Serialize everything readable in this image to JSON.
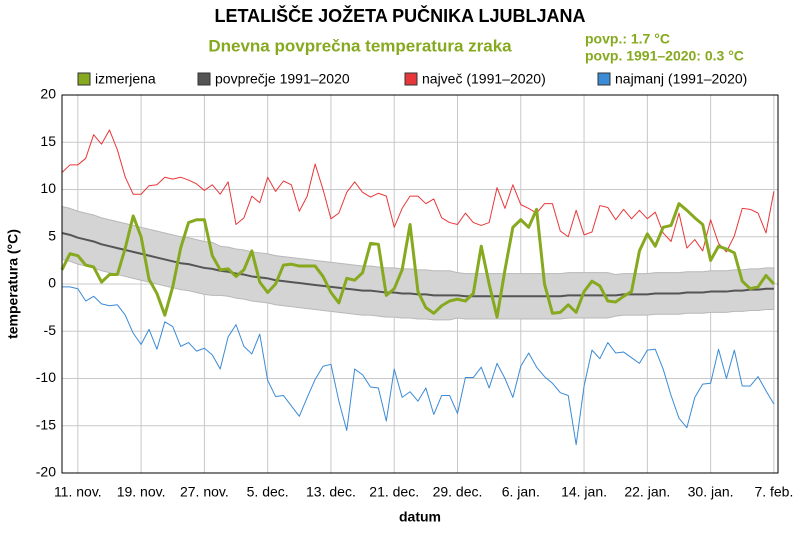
{
  "chart_data": {
    "type": "line",
    "title": "LETALIŠČE JOŽETA PUČNIKA LJUBLJANA",
    "subtitle": "Dnevna povprečna temperatura zraka",
    "annotations": [
      "povp.: 1.7 °C",
      "povp. 1991–2020: 0.3 °C"
    ],
    "annotation_color": "#86a91f",
    "xlabel": "datum",
    "ylabel": "temperatura (°C)",
    "grid": true,
    "legend": "top",
    "categories": [
      null,
      null,
      "11. nov.",
      null,
      null,
      null,
      null,
      null,
      null,
      null,
      "19. nov.",
      null,
      null,
      null,
      null,
      null,
      null,
      null,
      "27. nov.",
      null,
      null,
      null,
      null,
      null,
      null,
      null,
      "5. dec.",
      null,
      null,
      null,
      null,
      null,
      null,
      null,
      "13. dec.",
      null,
      null,
      null,
      null,
      null,
      null,
      null,
      "21. dec.",
      null,
      null,
      null,
      null,
      null,
      null,
      null,
      "29. dec.",
      null,
      null,
      null,
      null,
      null,
      null,
      null,
      "6. jan.",
      null,
      null,
      null,
      null,
      null,
      null,
      null,
      "14. jan.",
      null,
      null,
      null,
      null,
      null,
      null,
      null,
      "22. jan.",
      null,
      null,
      null,
      null,
      null,
      null,
      null,
      "30. jan.",
      null,
      null,
      null,
      null,
      null,
      null,
      null,
      "7. feb."
    ],
    "ylim": [
      -20,
      20
    ],
    "yticks": [
      -20,
      -15,
      -10,
      -5,
      0,
      5,
      10,
      15,
      20
    ],
    "band": {
      "color": "#d4d4d4",
      "upper": [
        8.2,
        8.0,
        7.7,
        7.5,
        7.3,
        7.0,
        6.8,
        6.6,
        6.4,
        6.2,
        6.0,
        5.8,
        5.6,
        5.4,
        5.2,
        5.0,
        4.9,
        4.7,
        4.5,
        4.4,
        4.0,
        3.9,
        3.7,
        3.6,
        3.4,
        3.3,
        3.2,
        3.0,
        2.9,
        2.8,
        2.7,
        2.6,
        2.5,
        2.4,
        2.3,
        2.2,
        2.1,
        2.0,
        1.9,
        1.9,
        1.8,
        1.7,
        1.7,
        1.6,
        1.6,
        1.5,
        1.5,
        1.4,
        1.4,
        1.4,
        1.2,
        1.1,
        1.1,
        1.1,
        1.1,
        1.1,
        1.1,
        1.1,
        1.1,
        1.1,
        1.1,
        1.1,
        1.1,
        1.1,
        1.2,
        1.2,
        1.2,
        1.2,
        1.2,
        1.2,
        1.0,
        1.1,
        1.1,
        1.1,
        1.1,
        1.2,
        1.2,
        1.2,
        1.2,
        1.3,
        1.3,
        1.3,
        1.4,
        1.4,
        1.4,
        1.5,
        1.5,
        1.6,
        1.6,
        1.7,
        1.7
      ],
      "lower": [
        2.6,
        2.4,
        2.1,
        1.9,
        1.7,
        1.4,
        1.2,
        1.0,
        0.8,
        0.6,
        0.4,
        0.2,
        0.0,
        -0.2,
        -0.4,
        -0.6,
        -0.7,
        -0.9,
        -1.1,
        -1.2,
        -1.2,
        -1.3,
        -1.5,
        -1.6,
        -1.8,
        -1.9,
        -2.0,
        -2.2,
        -2.3,
        -2.4,
        -2.5,
        -2.6,
        -2.7,
        -2.8,
        -2.9,
        -3.0,
        -3.1,
        -3.2,
        -3.3,
        -3.3,
        -3.4,
        -3.5,
        -3.5,
        -3.6,
        -3.6,
        -3.7,
        -3.7,
        -3.8,
        -3.8,
        -3.8,
        -3.6,
        -3.7,
        -3.7,
        -3.7,
        -3.7,
        -3.7,
        -3.7,
        -3.7,
        -3.7,
        -3.7,
        -3.7,
        -3.7,
        -3.7,
        -3.7,
        -3.6,
        -3.6,
        -3.6,
        -3.6,
        -3.6,
        -3.6,
        -3.4,
        -3.3,
        -3.3,
        -3.3,
        -3.3,
        -3.2,
        -3.2,
        -3.2,
        -3.2,
        -3.1,
        -3.1,
        -3.1,
        -3.0,
        -3.0,
        -3.0,
        -2.9,
        -2.9,
        -2.8,
        -2.8,
        -2.7,
        -2.7
      ]
    },
    "series": [
      {
        "name": "izmerjena",
        "color": "#86a91f",
        "width": 3,
        "values": [
          1.5,
          3.2,
          3.0,
          2.0,
          1.8,
          0.2,
          1.0,
          1.0,
          3.8,
          7.2,
          5.0,
          0.5,
          -1.0,
          -3.3,
          -0.3,
          3.8,
          6.5,
          6.8,
          6.8,
          3.0,
          1.5,
          1.6,
          0.8,
          1.5,
          3.5,
          0.2,
          -0.9,
          0.0,
          2.0,
          2.1,
          1.9,
          1.9,
          1.9,
          0.8,
          -0.9,
          -2.0,
          0.6,
          0.4,
          1.2,
          4.3,
          4.2,
          -1.2,
          -0.5,
          1.5,
          6.3,
          -0.8,
          -2.5,
          -3.1,
          -2.3,
          -1.8,
          -1.6,
          -1.8,
          -1.0,
          4.0,
          0.0,
          -3.5,
          1.5,
          6.0,
          6.8,
          6.0,
          7.9,
          0.0,
          -3.1,
          -3.0,
          -2.2,
          -3.0,
          -0.8,
          0.3,
          -0.2,
          -1.8,
          -1.9,
          -1.3,
          -0.8,
          3.5,
          5.3,
          4.0,
          6.0,
          6.2,
          8.5,
          7.8,
          7.0,
          6.3,
          2.5,
          4.0,
          3.7,
          3.3,
          0.3,
          -0.5,
          -0.3,
          0.9,
          0.0
        ]
      },
      {
        "name": "povprečje 1991–2020",
        "color": "#555555",
        "width": 2,
        "values": [
          5.4,
          5.2,
          4.9,
          4.7,
          4.5,
          4.2,
          4.0,
          3.8,
          3.6,
          3.4,
          3.2,
          3.0,
          2.8,
          2.6,
          2.4,
          2.2,
          2.1,
          1.9,
          1.7,
          1.6,
          1.4,
          1.3,
          1.1,
          1.0,
          0.8,
          0.7,
          0.6,
          0.4,
          0.3,
          0.2,
          0.1,
          0.0,
          -0.1,
          -0.2,
          -0.3,
          -0.4,
          -0.5,
          -0.6,
          -0.7,
          -0.7,
          -0.8,
          -0.9,
          -0.9,
          -1.0,
          -1.0,
          -1.1,
          -1.1,
          -1.2,
          -1.2,
          -1.2,
          -1.2,
          -1.3,
          -1.3,
          -1.3,
          -1.3,
          -1.3,
          -1.3,
          -1.3,
          -1.3,
          -1.3,
          -1.3,
          -1.3,
          -1.3,
          -1.3,
          -1.2,
          -1.2,
          -1.2,
          -1.2,
          -1.2,
          -1.2,
          -1.2,
          -1.1,
          -1.1,
          -1.1,
          -1.1,
          -1.0,
          -1.0,
          -1.0,
          -1.0,
          -0.9,
          -0.9,
          -0.9,
          -0.8,
          -0.8,
          -0.8,
          -0.7,
          -0.7,
          -0.6,
          -0.6,
          -0.5,
          -0.5
        ]
      },
      {
        "name": "največ (1991–2020)",
        "color": "#e8373a",
        "width": 1,
        "values": [
          11.8,
          12.6,
          12.6,
          13.3,
          15.8,
          14.8,
          16.3,
          14.2,
          11.3,
          9.5,
          9.5,
          10.4,
          10.5,
          11.3,
          11.1,
          11.3,
          11.0,
          10.6,
          9.9,
          10.5,
          9.5,
          10.8,
          6.3,
          7.0,
          9.3,
          8.6,
          11.3,
          9.8,
          10.9,
          10.5,
          7.7,
          9.3,
          12.7,
          10.0,
          6.9,
          7.5,
          9.7,
          10.8,
          9.7,
          9.2,
          9.6,
          9.3,
          6.0,
          8.0,
          9.3,
          9.3,
          8.5,
          9.0,
          7.0,
          6.5,
          6.3,
          7.5,
          6.5,
          6.2,
          6.5,
          10.2,
          8.0,
          10.5,
          8.4,
          8.0,
          7.5,
          8.5,
          8.5,
          5.6,
          5.0,
          7.8,
          5.2,
          5.5,
          8.3,
          8.1,
          6.8,
          7.9,
          6.9,
          7.8,
          6.9,
          7.6,
          5.4,
          4.5,
          7.5,
          3.8,
          4.7,
          3.5,
          6.8,
          4.3,
          3.4,
          5.1,
          8.0,
          7.9,
          7.5,
          5.4,
          9.8
        ]
      },
      {
        "name": "najmanj (1991–2020)",
        "color": "#3b8bd6",
        "width": 1,
        "values": [
          -0.3,
          -0.3,
          -0.5,
          -1.8,
          -1.3,
          -2.1,
          -2.3,
          -2.2,
          -3.3,
          -5.2,
          -6.4,
          -4.8,
          -6.9,
          -4.0,
          -4.5,
          -6.6,
          -6.2,
          -7.1,
          -6.8,
          -7.5,
          -9.0,
          -5.6,
          -4.3,
          -6.6,
          -7.4,
          -5.3,
          -10.2,
          -11.9,
          -11.8,
          -12.9,
          -14.0,
          -12.0,
          -10.1,
          -8.7,
          -8.5,
          -12.4,
          -15.5,
          -9.0,
          -9.6,
          -10.9,
          -11.0,
          -14.5,
          -9.0,
          -12.0,
          -11.4,
          -12.4,
          -11.0,
          -13.8,
          -11.8,
          -11.8,
          -13.7,
          -9.9,
          -9.9,
          -8.8,
          -11.0,
          -8.4,
          -10.0,
          -12.0,
          -8.7,
          -7.3,
          -8.8,
          -9.8,
          -10.5,
          -11.5,
          -11.8,
          -17.0,
          -10.8,
          -7.0,
          -7.9,
          -6.2,
          -7.3,
          -7.2,
          -7.8,
          -8.4,
          -7.0,
          -6.9,
          -9.0,
          -11.8,
          -14.2,
          -15.2,
          -12.0,
          -10.6,
          -10.5,
          -6.9,
          -10.0,
          -7.0,
          -10.8,
          -10.8,
          -9.8,
          -11.3,
          -12.7
        ]
      }
    ]
  }
}
